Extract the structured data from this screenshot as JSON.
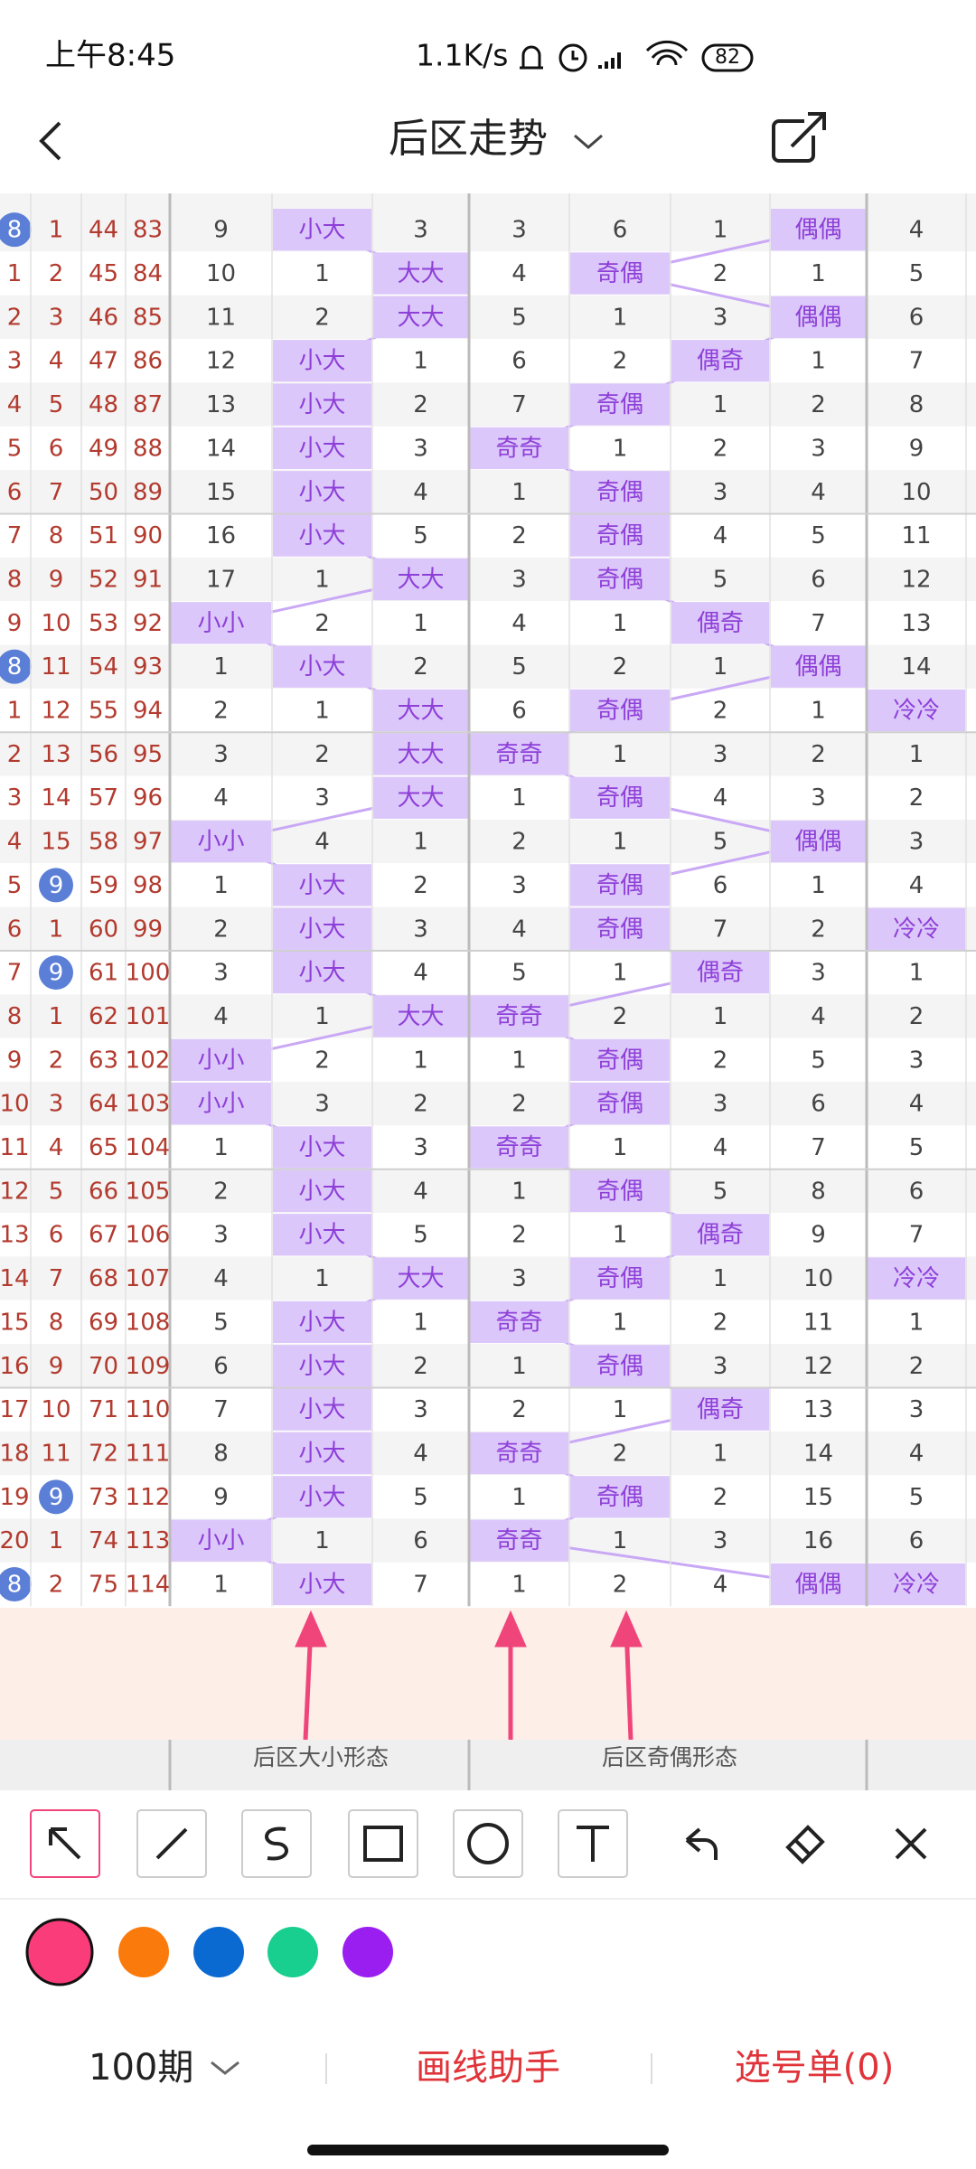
{
  "status_bar": {
    "time": "上午8:45",
    "net_speed": "1.1K/s",
    "battery": "82"
  },
  "header": {
    "title": "后区走势"
  },
  "table": {
    "rows": [
      [
        8,
        1,
        44,
        83,
        9,
        "小大",
        3,
        3,
        6,
        1,
        "偶偶",
        4
      ],
      [
        1,
        2,
        45,
        84,
        10,
        1,
        "大大",
        4,
        "奇偶",
        2,
        1,
        5
      ],
      [
        2,
        3,
        46,
        85,
        11,
        2,
        "大大",
        5,
        1,
        3,
        "偶偶",
        6
      ],
      [
        3,
        4,
        47,
        86,
        12,
        "小大",
        1,
        6,
        2,
        "偶奇",
        1,
        7
      ],
      [
        4,
        5,
        48,
        87,
        13,
        "小大",
        2,
        7,
        "奇偶",
        1,
        2,
        8
      ],
      [
        5,
        6,
        49,
        88,
        14,
        "小大",
        3,
        "奇奇",
        1,
        2,
        3,
        9
      ],
      [
        6,
        7,
        50,
        89,
        15,
        "小大",
        4,
        1,
        "奇偶",
        3,
        4,
        10
      ],
      [
        7,
        8,
        51,
        90,
        16,
        "小大",
        5,
        2,
        "奇偶",
        4,
        5,
        11
      ],
      [
        8,
        9,
        52,
        91,
        17,
        1,
        "大大",
        3,
        "奇偶",
        5,
        6,
        12
      ],
      [
        9,
        10,
        53,
        92,
        "小小",
        2,
        1,
        4,
        1,
        "偶奇",
        7,
        13
      ],
      [
        8,
        11,
        54,
        93,
        1,
        "小大",
        2,
        5,
        2,
        1,
        "偶偶",
        14
      ],
      [
        1,
        12,
        55,
        94,
        2,
        1,
        "大大",
        6,
        "奇偶",
        2,
        1,
        "冷冷"
      ],
      [
        2,
        13,
        56,
        95,
        3,
        2,
        "大大",
        "奇奇",
        1,
        3,
        2,
        1
      ],
      [
        3,
        14,
        57,
        96,
        4,
        3,
        "大大",
        1,
        "奇偶",
        4,
        3,
        2
      ],
      [
        4,
        15,
        58,
        97,
        "小小",
        4,
        1,
        2,
        1,
        5,
        "偶偶",
        3
      ],
      [
        5,
        9,
        59,
        98,
        1,
        "小大",
        2,
        3,
        "奇偶",
        6,
        1,
        4
      ],
      [
        6,
        1,
        60,
        99,
        2,
        "小大",
        3,
        4,
        "奇偶",
        7,
        2,
        "冷冷"
      ],
      [
        7,
        9,
        61,
        100,
        3,
        "小大",
        4,
        5,
        1,
        "偶奇",
        3,
        1
      ],
      [
        8,
        1,
        62,
        101,
        4,
        1,
        "大大",
        "奇奇",
        2,
        1,
        4,
        2
      ],
      [
        9,
        2,
        63,
        102,
        "小小",
        2,
        1,
        1,
        "奇偶",
        2,
        5,
        3
      ],
      [
        10,
        3,
        64,
        103,
        "小小",
        3,
        2,
        2,
        "奇偶",
        3,
        6,
        4
      ],
      [
        11,
        4,
        65,
        104,
        1,
        "小大",
        3,
        "奇奇",
        1,
        4,
        7,
        5
      ],
      [
        12,
        5,
        66,
        105,
        2,
        "小大",
        4,
        1,
        "奇偶",
        5,
        8,
        6
      ],
      [
        13,
        6,
        67,
        106,
        3,
        "小大",
        5,
        2,
        1,
        "偶奇",
        9,
        7
      ],
      [
        14,
        7,
        68,
        107,
        4,
        1,
        "大大",
        3,
        "奇偶",
        1,
        10,
        "冷冷"
      ],
      [
        15,
        8,
        69,
        108,
        5,
        "小大",
        1,
        "奇奇",
        1,
        2,
        11,
        1
      ],
      [
        16,
        9,
        70,
        109,
        6,
        "小大",
        2,
        1,
        "奇偶",
        3,
        12,
        2
      ],
      [
        17,
        10,
        71,
        110,
        7,
        "小大",
        3,
        2,
        1,
        "偶奇",
        13,
        3
      ],
      [
        18,
        11,
        72,
        111,
        8,
        "小大",
        4,
        "奇奇",
        2,
        1,
        14,
        4
      ],
      [
        19,
        9,
        73,
        112,
        9,
        "小大",
        5,
        1,
        "奇偶",
        2,
        15,
        5
      ],
      [
        20,
        1,
        74,
        113,
        "小小",
        1,
        6,
        "奇奇",
        1,
        3,
        16,
        6
      ],
      [
        8,
        2,
        75,
        114,
        1,
        "小大",
        7,
        1,
        2,
        4,
        "偶偶",
        "冷冷"
      ]
    ],
    "group_headers": [
      "后区大小形态",
      "后区奇偶形态"
    ]
  },
  "footer": {
    "period": "100期",
    "draw_helper": "画线助手",
    "pick_list": "选号单(0)"
  }
}
